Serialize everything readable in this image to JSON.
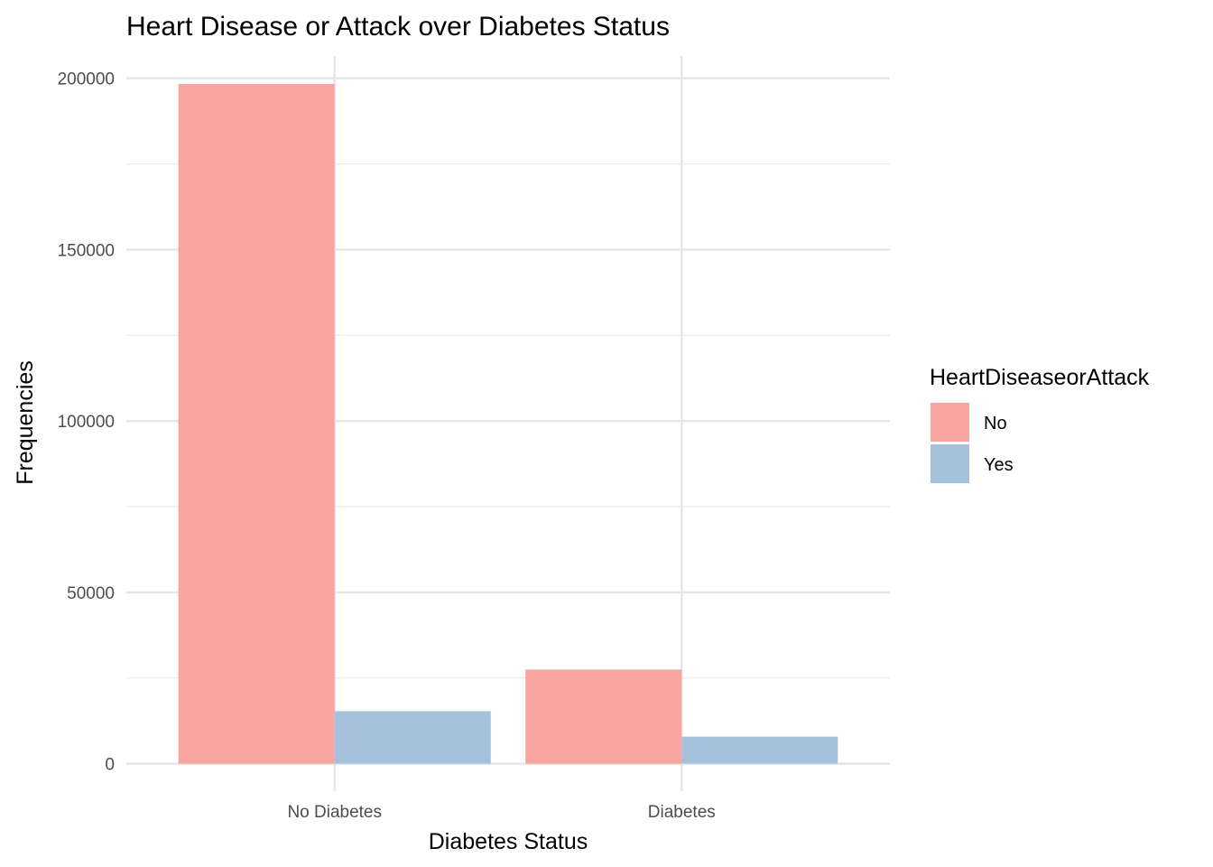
{
  "chart_data": {
    "type": "bar",
    "title": "Heart Disease or Attack over Diabetes Status",
    "xlabel": "Diabetes Status",
    "ylabel": "Frequencies",
    "categories": [
      "No Diabetes",
      "Diabetes"
    ],
    "series": [
      {
        "name": "No",
        "values": [
          198352,
          27468
        ],
        "color": "#F8A5A0"
      },
      {
        "name": "Yes",
        "values": [
          15334,
          7906
        ],
        "color": "#A6C1DC"
      }
    ],
    "ylim": [
      -8000,
      206500
    ],
    "yticks": [
      0,
      50000,
      100000,
      150000,
      200000
    ],
    "ytick_labels": [
      "0",
      "50000",
      "100000",
      "150000",
      "200000"
    ],
    "grid": true,
    "legend": {
      "title": "HeartDiseaseorAttack",
      "position": "right"
    }
  }
}
